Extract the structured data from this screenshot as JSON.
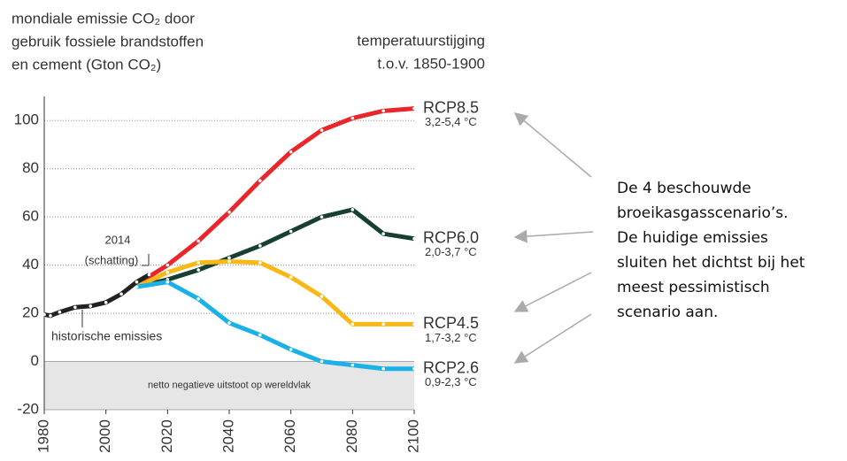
{
  "chart_data": {
    "type": "line",
    "title_lines": [
      "mondiale emissie CO₂ door",
      "gebruik fossiele brandstoffen",
      "en cement (Gton CO₂)"
    ],
    "right_title_lines": [
      "temperatuurstijging",
      "t.o.v. 1850-1900"
    ],
    "xlim": [
      1980,
      2100
    ],
    "xticks": [
      1980,
      2000,
      2020,
      2040,
      2060,
      2080,
      2100
    ],
    "ylim": [
      -20,
      110
    ],
    "yticks": [
      -20,
      0,
      20,
      40,
      60,
      80,
      100
    ],
    "grid": true,
    "historical": {
      "name": "historische emissies",
      "color": "#222222",
      "x": [
        1980,
        1982,
        1985,
        1990,
        1995,
        2000,
        2005,
        2010,
        2014
      ],
      "values": [
        19.5,
        19,
        20.5,
        22.5,
        23,
        24.5,
        28,
        33,
        36
      ]
    },
    "estimate_label_lines": [
      "2014",
      "(schatting)"
    ],
    "series": [
      {
        "name": "RCP8.5",
        "temperature": "3,2-5,4 °C",
        "color": "#e8262b",
        "x": [
          2010,
          2020,
          2030,
          2040,
          2050,
          2060,
          2070,
          2080,
          2090,
          2100
        ],
        "values": [
          32,
          40,
          50,
          62,
          75,
          87,
          96,
          101,
          104,
          105
        ]
      },
      {
        "name": "RCP6.0",
        "temperature": "2,0-3,7 °C",
        "color": "#173f33",
        "x": [
          2010,
          2020,
          2030,
          2040,
          2050,
          2060,
          2070,
          2080,
          2090,
          2100
        ],
        "values": [
          31,
          34,
          38,
          43,
          48,
          54,
          60,
          63,
          53,
          51
        ]
      },
      {
        "name": "RCP4.5",
        "temperature": "1,7-3,2 °C",
        "color": "#f9b815",
        "x": [
          2010,
          2020,
          2030,
          2040,
          2050,
          2060,
          2070,
          2080,
          2090,
          2100
        ],
        "values": [
          31,
          37,
          41,
          41.5,
          41,
          35,
          27,
          15.5,
          15.5,
          15.5
        ]
      },
      {
        "name": "RCP2.6",
        "temperature": "0,9-2,3 °C",
        "color": "#1ab2e6",
        "x": [
          2010,
          2020,
          2030,
          2040,
          2050,
          2060,
          2070,
          2080,
          2090,
          2100
        ],
        "values": [
          31,
          33,
          26,
          16,
          11,
          5,
          0,
          -1.5,
          -3,
          -3
        ]
      }
    ],
    "negative_zone_label": "netto negatieve uitstoot op wereldvlak",
    "side_note_lines": [
      "De 4 beschouwde",
      "broeikasgasscenario’s.",
      "De huidige emissies",
      "sluiten het dichtst bij het",
      "meest pessimistisch",
      "scenario aan."
    ]
  }
}
